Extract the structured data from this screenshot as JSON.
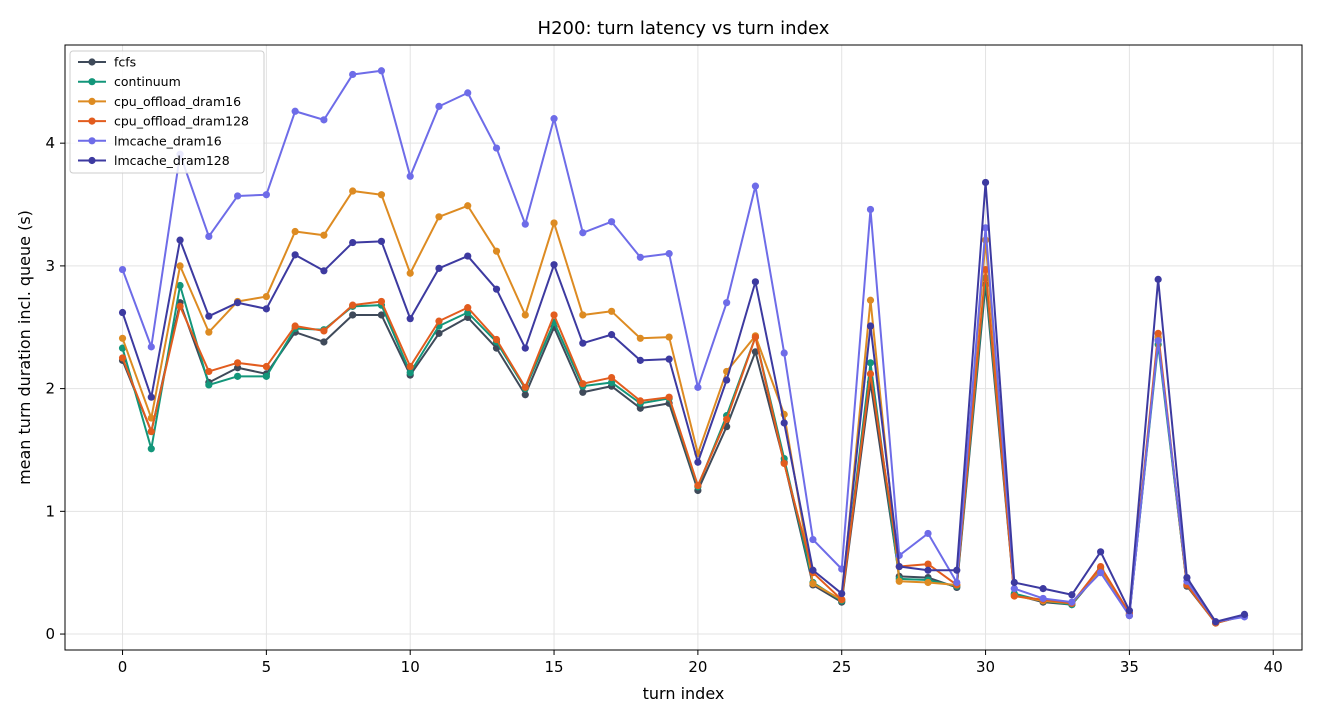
{
  "chart_data": {
    "type": "line",
    "title": "H200: turn latency vs turn index",
    "xlabel": "turn index",
    "ylabel": "mean turn duration incl. queue (s)",
    "xlim": [
      -2,
      41
    ],
    "ylim": [
      -0.13,
      4.8
    ],
    "xticks": [
      0,
      5,
      10,
      15,
      20,
      25,
      30,
      35,
      40
    ],
    "yticks": [
      0,
      1,
      2,
      3,
      4
    ],
    "grid": true,
    "legend_position": "upper left",
    "x": [
      0,
      1,
      2,
      3,
      4,
      5,
      6,
      7,
      8,
      9,
      10,
      11,
      12,
      13,
      14,
      15,
      16,
      17,
      18,
      19,
      20,
      21,
      22,
      23,
      24,
      25,
      26,
      27,
      28,
      29,
      30,
      31,
      32,
      33,
      34,
      35,
      36,
      37,
      38,
      39
    ],
    "series": [
      {
        "name": "fcfs",
        "color": "#3f4a5a",
        "values": [
          2.23,
          1.65,
          2.7,
          2.05,
          2.17,
          2.12,
          2.46,
          2.38,
          2.6,
          2.6,
          2.11,
          2.45,
          2.58,
          2.33,
          1.95,
          2.5,
          1.97,
          2.02,
          1.84,
          1.88,
          1.17,
          1.69,
          2.3,
          1.4,
          0.4,
          0.26,
          2.05,
          0.47,
          0.46,
          0.38,
          2.85,
          0.32,
          0.26,
          0.24,
          0.52,
          0.15,
          2.4,
          0.39,
          0.09,
          0.15
        ]
      },
      {
        "name": "continuum",
        "color": "#13967a",
        "values": [
          2.33,
          1.51,
          2.84,
          2.03,
          2.1,
          2.1,
          2.49,
          2.48,
          2.67,
          2.68,
          2.13,
          2.51,
          2.62,
          2.38,
          2.0,
          2.54,
          2.02,
          2.05,
          1.88,
          1.92,
          1.2,
          1.78,
          2.42,
          1.43,
          0.42,
          0.27,
          2.21,
          0.45,
          0.44,
          0.39,
          2.9,
          0.33,
          0.27,
          0.24,
          0.54,
          0.16,
          2.36,
          0.4,
          0.09,
          0.15
        ]
      },
      {
        "name": "cpu_offload_dram16",
        "color": "#dd8b22",
        "values": [
          2.41,
          1.76,
          3.0,
          2.46,
          2.71,
          2.75,
          3.28,
          3.25,
          3.61,
          3.58,
          2.94,
          3.4,
          3.49,
          3.12,
          2.6,
          3.35,
          2.6,
          2.63,
          2.41,
          2.42,
          1.47,
          2.14,
          2.43,
          1.79,
          0.41,
          0.28,
          2.72,
          0.43,
          0.42,
          0.4,
          3.21,
          0.31,
          0.27,
          0.25,
          0.52,
          0.16,
          2.42,
          0.4,
          0.09,
          0.15
        ]
      },
      {
        "name": "cpu_offload_dram128",
        "color": "#e25c1e",
        "values": [
          2.25,
          1.65,
          2.67,
          2.14,
          2.21,
          2.18,
          2.51,
          2.47,
          2.68,
          2.71,
          2.18,
          2.55,
          2.66,
          2.4,
          2.01,
          2.6,
          2.04,
          2.09,
          1.9,
          1.93,
          1.21,
          1.75,
          2.42,
          1.39,
          0.5,
          0.28,
          2.12,
          0.55,
          0.57,
          0.4,
          2.97,
          0.31,
          0.28,
          0.25,
          0.55,
          0.17,
          2.45,
          0.4,
          0.09,
          0.15
        ]
      },
      {
        "name": "lmcache_dram16",
        "color": "#6e6ce8",
        "values": [
          2.97,
          2.34,
          3.91,
          3.24,
          3.57,
          3.58,
          4.26,
          4.19,
          4.56,
          4.59,
          3.73,
          4.3,
          4.41,
          3.96,
          3.34,
          4.2,
          3.27,
          3.36,
          3.07,
          3.1,
          2.01,
          2.7,
          3.65,
          2.29,
          0.77,
          0.53,
          3.46,
          0.64,
          0.82,
          0.42,
          3.31,
          0.37,
          0.29,
          0.26,
          0.5,
          0.15,
          2.39,
          0.43,
          0.1,
          0.14
        ]
      },
      {
        "name": "lmcache_dram128",
        "color": "#3d3aa0",
        "values": [
          2.62,
          1.93,
          3.21,
          2.59,
          2.7,
          2.65,
          3.09,
          2.96,
          3.19,
          3.2,
          2.57,
          2.98,
          3.08,
          2.81,
          2.33,
          3.01,
          2.37,
          2.44,
          2.23,
          2.24,
          1.4,
          2.07,
          2.87,
          1.72,
          0.52,
          0.33,
          2.51,
          0.55,
          0.52,
          0.52,
          3.68,
          0.42,
          0.37,
          0.32,
          0.67,
          0.19,
          2.89,
          0.46,
          0.1,
          0.16
        ]
      }
    ]
  }
}
